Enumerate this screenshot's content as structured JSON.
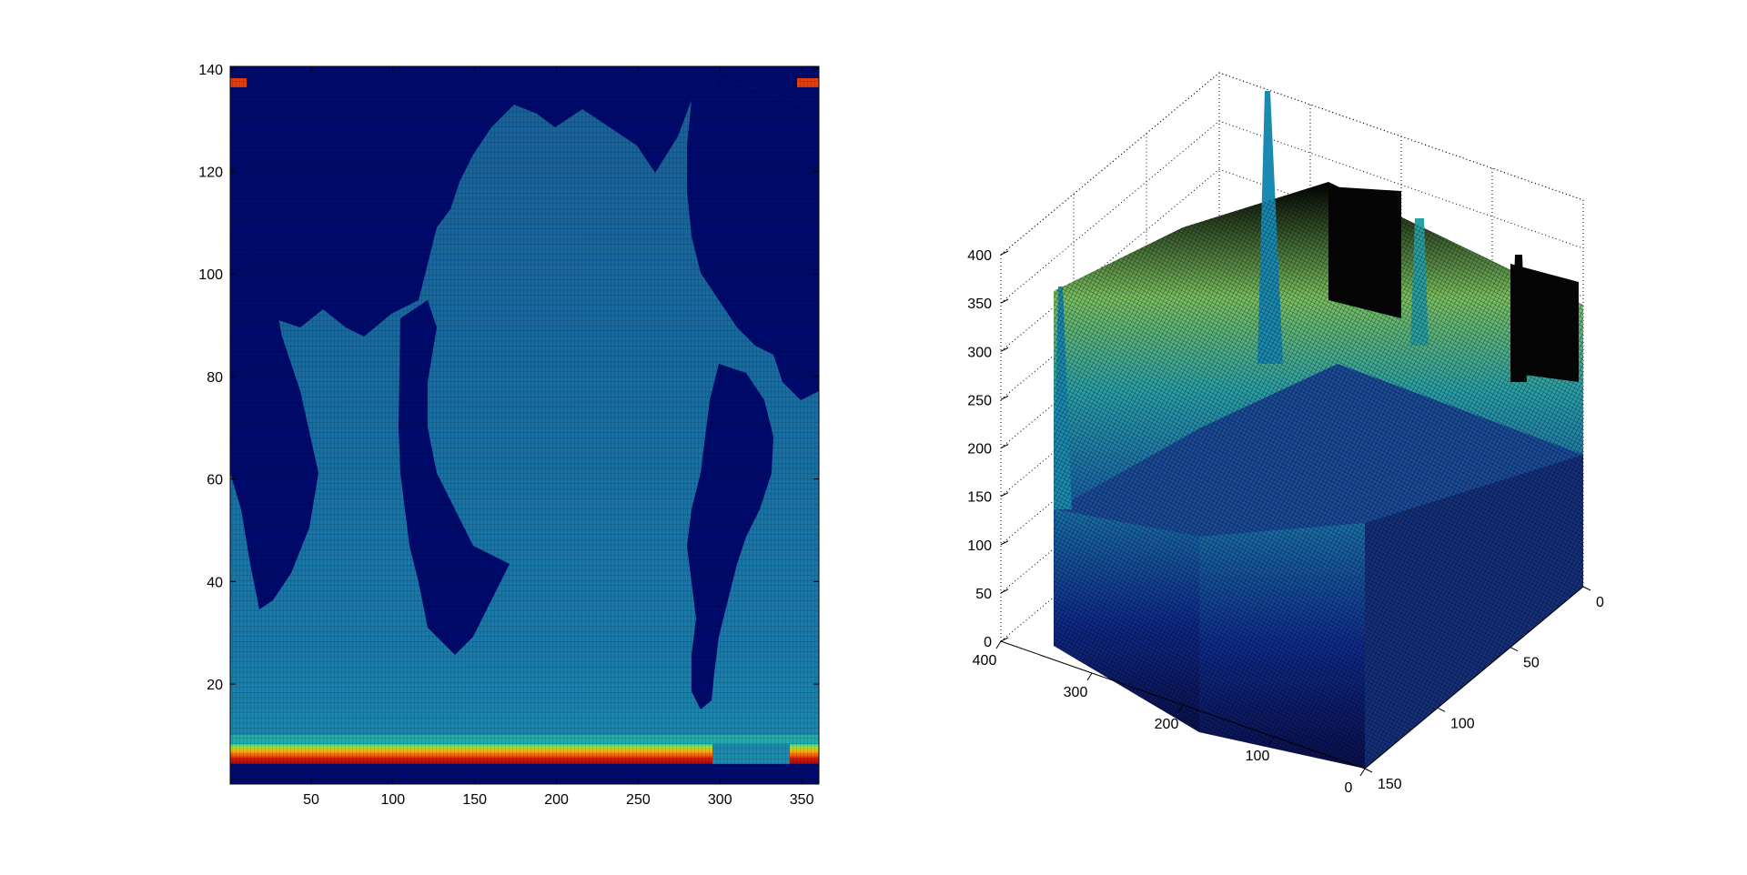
{
  "chart_data": [
    {
      "type": "heatmap",
      "title": "",
      "xlabel": "",
      "ylabel": "",
      "xlim": [
        0.5,
        360.5
      ],
      "ylim": [
        0.5,
        140.5
      ],
      "x_ticks": [
        "50",
        "100",
        "150",
        "200",
        "250",
        "300",
        "350"
      ],
      "y_ticks": [
        "20",
        "40",
        "60",
        "80",
        "100",
        "120",
        "140"
      ],
      "colormap": "jet",
      "grid_cells": [
        360,
        140
      ],
      "value_range": [
        0,
        400
      ],
      "background_color": "#0a0f6e",
      "continents_color": "#00006a",
      "ocean_color": "#1f6fa0",
      "southern_ocean_band": {
        "y_range": [
          2,
          8
        ],
        "value": 360
      }
    },
    {
      "type": "surface",
      "title": "",
      "xlabel": "",
      "ylabel": "",
      "zlabel": "",
      "x_ticks": [
        "0",
        "50",
        "100",
        "150"
      ],
      "y_ticks": [
        "0",
        "100",
        "200",
        "300",
        "400"
      ],
      "z_ticks": [
        "0",
        "50",
        "100",
        "150",
        "200",
        "250",
        "300",
        "350",
        "400"
      ],
      "xlim": [
        0,
        150
      ],
      "ylim": [
        0,
        400
      ],
      "zlim": [
        0,
        400
      ],
      "colormap": "jet",
      "grid": true,
      "box": true
    }
  ]
}
